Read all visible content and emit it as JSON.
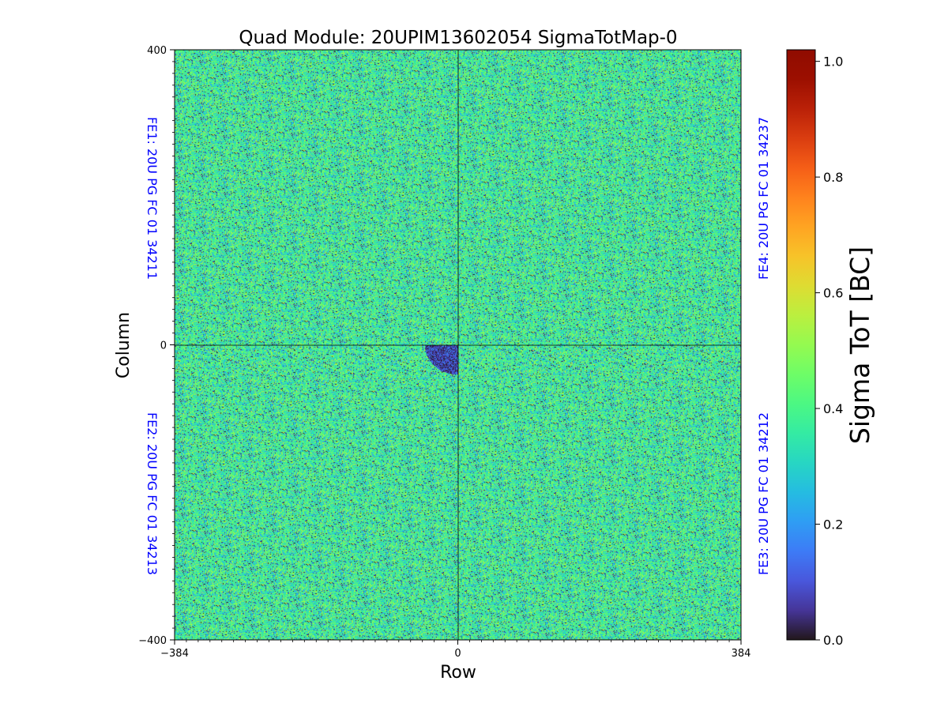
{
  "chart_data": {
    "type": "heatmap",
    "title": "Quad Module: 20UPIM13602054 SigmaTotMap-0",
    "xlabel": "Row",
    "ylabel": "Column",
    "xlim": [
      -384,
      384
    ],
    "ylim": [
      -400,
      400
    ],
    "x_ticks": [
      {
        "value": -384,
        "label": "−384"
      },
      {
        "value": 0,
        "label": "0"
      },
      {
        "value": 384,
        "label": "384"
      }
    ],
    "y_ticks": [
      {
        "value": 400,
        "label": "400"
      },
      {
        "value": 0,
        "label": "0"
      },
      {
        "value": -400,
        "label": "−400"
      }
    ],
    "colorbar": {
      "label": "Sigma ToT [BC]",
      "range": [
        0.0,
        1.02
      ],
      "colormap": "turbo",
      "ticks": [
        {
          "value": 0.0,
          "label": "0.0"
        },
        {
          "value": 0.2,
          "label": "0.2"
        },
        {
          "value": 0.4,
          "label": "0.4"
        },
        {
          "value": 0.6,
          "label": "0.6"
        },
        {
          "value": 0.8,
          "label": "0.8"
        },
        {
          "value": 1.0,
          "label": "1.0"
        }
      ]
    },
    "typical_value": 0.38,
    "value_spread": 0.1,
    "dead_fraction": 0.06,
    "low_response_region": {
      "row_range": [
        -45,
        0
      ],
      "column_range": [
        -40,
        0
      ]
    },
    "quadrant_labels": [
      {
        "name": "FE1",
        "text": "FE1: 20U PG FC 01 34211",
        "position": "top-left"
      },
      {
        "name": "FE2",
        "text": "FE2: 20U PG FC 01 34213",
        "position": "bottom-left"
      },
      {
        "name": "FE3",
        "text": "FE3: 20U PG FC 01 34212",
        "position": "bottom-right"
      },
      {
        "name": "FE4",
        "text": "FE4: 20U PG FC 01 34237",
        "position": "top-right"
      }
    ],
    "divider_lines": {
      "row": 0,
      "column": 0
    },
    "label_color": "#0000ff"
  }
}
